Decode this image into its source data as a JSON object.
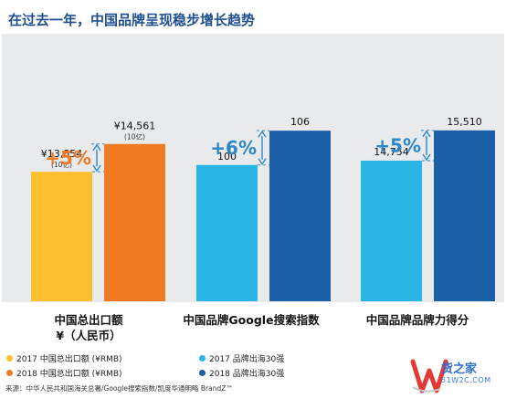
{
  "title": "在过去一年，中国品牌呈现稳步增长趋势",
  "colors": {
    "y2017_a": "#fbc02d",
    "y2018_a": "#ef7a22",
    "y2017_b": "#29b6e6",
    "y2018_b": "#1c5fa9",
    "growth": "#2d87c7",
    "panel": "#e9eaec"
  },
  "chart_data": {
    "type": "bar",
    "groups": [
      {
        "label_lines": [
          "中国总出口额",
          "¥（人民币）"
        ],
        "values": [
          13854,
          14561
        ],
        "value_labels": [
          "¥13,854",
          "¥14,561"
        ],
        "unit_labels": [
          "(10亿)",
          "(10亿)"
        ],
        "growth": "+5%",
        "palette": "a"
      },
      {
        "label_lines": [
          "中国品牌Google搜索指数"
        ],
        "values": [
          100,
          106
        ],
        "value_labels": [
          "100",
          "106"
        ],
        "unit_labels": [
          "",
          ""
        ],
        "growth": "+6%",
        "palette": "b"
      },
      {
        "label_lines": [
          "中国品牌品牌力得分"
        ],
        "values": [
          14754,
          15510
        ],
        "value_labels": [
          "14,754",
          "15,510"
        ],
        "unit_labels": [
          "",
          ""
        ],
        "growth": "+5%",
        "palette": "b"
      }
    ],
    "legend": [
      {
        "label": "2017 中国总出口额 (¥RMB)",
        "color": "#fbc02d"
      },
      {
        "label": "2018 中国总出口额 (¥RMB)",
        "color": "#ef7a22"
      },
      {
        "label": "2017 品牌出海30强",
        "color": "#29b6e6"
      },
      {
        "label": "2018 品牌出海30强",
        "color": "#1c5fa9"
      }
    ],
    "legend_placement": "bottom"
  },
  "source": "来源：中华人民共和国海关总署/Google搜索指数/凯度华通明略 BrandZ™",
  "watermark": {
    "name": "货之家",
    "domain": "51W2C.COM"
  }
}
